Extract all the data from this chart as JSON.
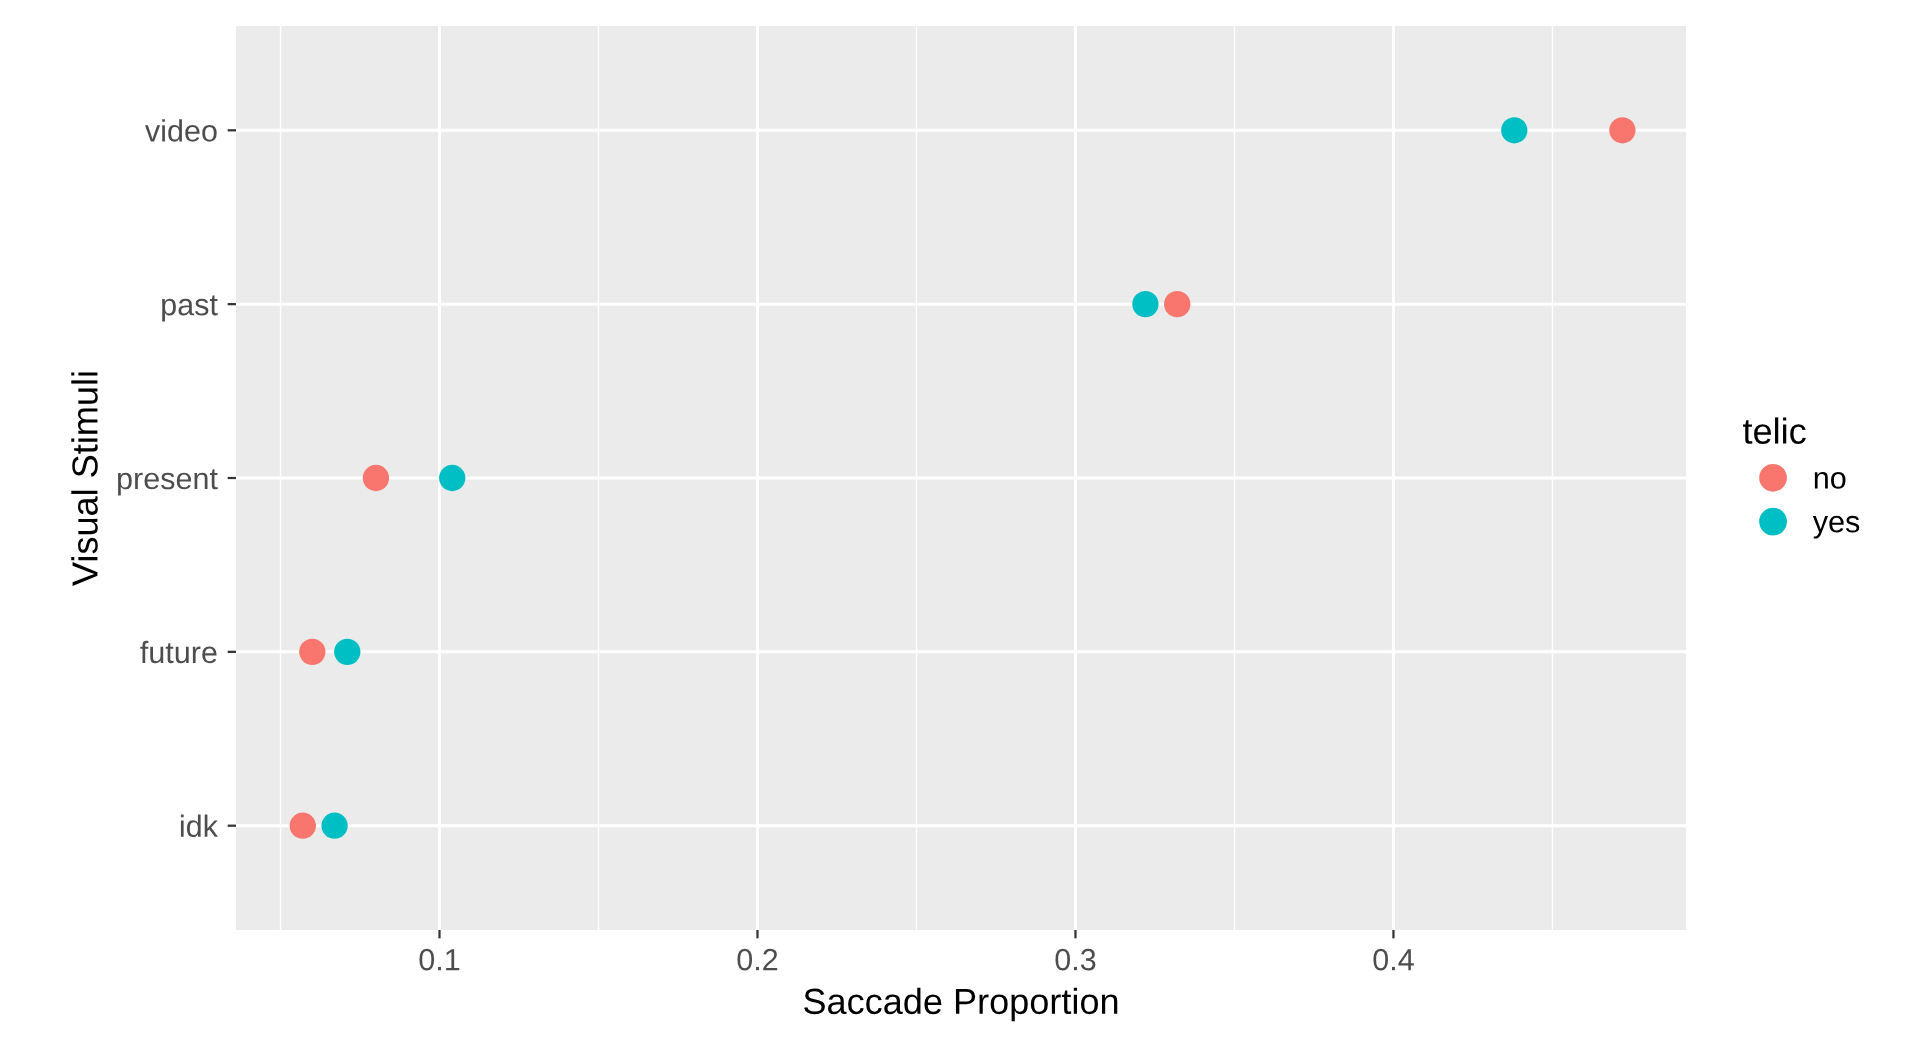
{
  "chart_data": {
    "type": "scatter",
    "orientation": "horizontal",
    "xlabel": "Saccade Proportion",
    "ylabel": "Visual Stimuli",
    "legend_title": "telic",
    "legend": "right",
    "categories": [
      "video",
      "past",
      "present",
      "future",
      "idk"
    ],
    "series": [
      {
        "name": "no",
        "color": "#f8766d",
        "values": [
          0.472,
          0.332,
          0.08,
          0.06,
          0.057
        ]
      },
      {
        "name": "yes",
        "color": "#00bfc4",
        "values": [
          0.438,
          0.322,
          0.104,
          0.071,
          0.067
        ]
      }
    ],
    "xlim": [
      0.036,
      0.492
    ],
    "xticks": [
      0.1,
      0.2,
      0.3,
      0.4
    ],
    "grid": true,
    "marker": "circle"
  }
}
